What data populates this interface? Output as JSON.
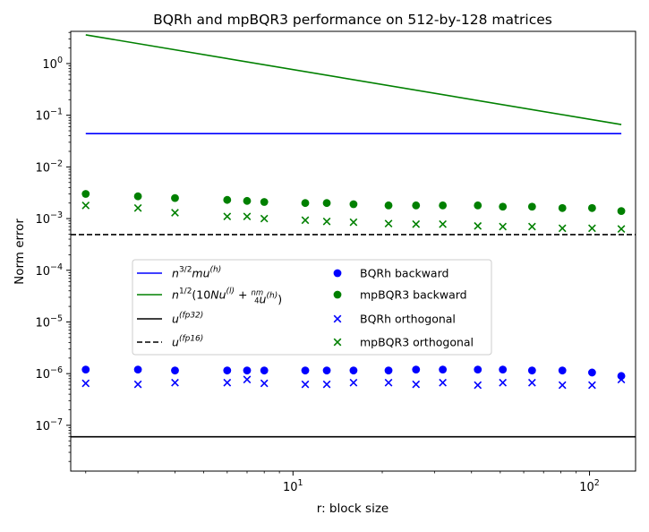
{
  "chart_data": {
    "type": "scatter",
    "title": "BQRh and mpBQR3 performance on 512-by-128 matrices",
    "xlabel": "r: block size",
    "ylabel": "Norm error",
    "xscale": "log",
    "yscale": "log",
    "xlim": [
      1.78,
      143
    ],
    "ylim": [
      1.3e-08,
      4.2
    ],
    "grid": false,
    "legend_position": "center-left",
    "x_tick_labels": [
      {
        "value": 10,
        "mantissa": "10",
        "exp": "1"
      },
      {
        "value": 100,
        "mantissa": "10",
        "exp": "2"
      }
    ],
    "y_tick_labels": [
      {
        "value": 1e-07,
        "mantissa": "10",
        "exp": "−7"
      },
      {
        "value": 1e-06,
        "mantissa": "10",
        "exp": "−6"
      },
      {
        "value": 1e-05,
        "mantissa": "10",
        "exp": "−5"
      },
      {
        "value": 0.0001,
        "mantissa": "10",
        "exp": "−4"
      },
      {
        "value": 0.001,
        "mantissa": "10",
        "exp": "−3"
      },
      {
        "value": 0.01,
        "mantissa": "10",
        "exp": "−2"
      },
      {
        "value": 0.1,
        "mantissa": "10",
        "exp": "−1"
      },
      {
        "value": 1,
        "mantissa": "10",
        "exp": "0"
      }
    ],
    "lines": [
      {
        "name": "n^{3/2} m u^{(h)}",
        "color": "#0000ff",
        "dash": "solid",
        "x": [
          2,
          128
        ],
        "y": [
          0.044,
          0.044
        ]
      },
      {
        "name": "n^{1/2}(10 N u^{(l)} + nm/4 u^{(h)})",
        "color": "#008000",
        "dash": "solid",
        "x": [
          2,
          128
        ],
        "y": [
          3.6,
          0.066
        ]
      },
      {
        "name": "u^{(fp32)}",
        "color": "#000000",
        "dash": "solid",
        "x": [
          1.78,
          143
        ],
        "y": [
          6e-08,
          6e-08
        ]
      },
      {
        "name": "u^{(fp16)}",
        "color": "#000000",
        "dash": "dashed",
        "x": [
          1.78,
          143
        ],
        "y": [
          0.00049,
          0.00049
        ]
      }
    ],
    "series": [
      {
        "name": "BQRh backward",
        "color": "#0000ff",
        "marker": "circle",
        "x": [
          2,
          3,
          4,
          6,
          7,
          8,
          11,
          13,
          16,
          21,
          26,
          32,
          42,
          51,
          64,
          81,
          102,
          128
        ],
        "y": [
          1.2e-06,
          1.2e-06,
          1.15e-06,
          1.15e-06,
          1.15e-06,
          1.15e-06,
          1.15e-06,
          1.15e-06,
          1.15e-06,
          1.15e-06,
          1.2e-06,
          1.2e-06,
          1.2e-06,
          1.2e-06,
          1.15e-06,
          1.15e-06,
          1.05e-06,
          9e-07
        ]
      },
      {
        "name": "mpBQR3 backward",
        "color": "#008000",
        "marker": "circle",
        "x": [
          2,
          3,
          4,
          6,
          7,
          8,
          11,
          13,
          16,
          21,
          26,
          32,
          42,
          51,
          64,
          81,
          102,
          128
        ],
        "y": [
          0.003,
          0.0027,
          0.0025,
          0.0023,
          0.0022,
          0.0021,
          0.002,
          0.002,
          0.0019,
          0.0018,
          0.0018,
          0.0018,
          0.0018,
          0.0017,
          0.0017,
          0.0016,
          0.0016,
          0.0014
        ]
      },
      {
        "name": "BQRh orthogonal",
        "color": "#0000ff",
        "marker": "x",
        "x": [
          2,
          3,
          4,
          6,
          7,
          8,
          11,
          13,
          16,
          21,
          26,
          32,
          42,
          51,
          64,
          81,
          102,
          128
        ],
        "y": [
          6.5e-07,
          6.2e-07,
          6.7e-07,
          6.7e-07,
          7.7e-07,
          6.5e-07,
          6.2e-07,
          6.2e-07,
          6.7e-07,
          6.7e-07,
          6.2e-07,
          6.7e-07,
          6e-07,
          6.7e-07,
          6.7e-07,
          6e-07,
          6e-07,
          7.7e-07
        ]
      },
      {
        "name": "mpBQR3 orthogonal",
        "color": "#008000",
        "marker": "x",
        "x": [
          2,
          3,
          4,
          6,
          7,
          8,
          11,
          13,
          16,
          21,
          26,
          32,
          42,
          51,
          64,
          81,
          102,
          128
        ],
        "y": [
          0.0018,
          0.0016,
          0.0013,
          0.0011,
          0.0011,
          0.001,
          0.00093,
          0.00088,
          0.00085,
          0.0008,
          0.00078,
          0.00078,
          0.00072,
          0.0007,
          0.0007,
          0.00065,
          0.00065,
          0.00063
        ]
      }
    ],
    "legend": {
      "col1": [
        {
          "kind": "line",
          "color": "#0000ff",
          "dash": "solid",
          "parts": [
            {
              "t": "n",
              "i": true
            },
            {
              "t": "3/2",
              "sup": true,
              "i": false
            },
            {
              "t": "mu",
              "i": true
            },
            {
              "t": "(h)",
              "sup": true,
              "i": true
            }
          ]
        },
        {
          "kind": "line",
          "color": "#008000",
          "dash": "solid",
          "parts": [
            {
              "t": "n",
              "i": true
            },
            {
              "t": "1/2",
              "sup": true,
              "i": false
            },
            {
              "t": "(10",
              "i": false
            },
            {
              "t": "Nu",
              "i": true
            },
            {
              "t": "(l)",
              "sup": true,
              "i": true
            },
            {
              "t": " + ",
              "i": false
            },
            {
              "frac": true,
              "num": "nm",
              "den": "4"
            },
            {
              "t": "u",
              "i": true
            },
            {
              "t": "(h)",
              "sup": true,
              "i": true
            },
            {
              "t": ")",
              "i": false
            }
          ]
        },
        {
          "kind": "line",
          "color": "#000000",
          "dash": "solid",
          "parts": [
            {
              "t": "u",
              "i": true
            },
            {
              "t": "(fp32)",
              "sup": true,
              "i": true
            }
          ]
        },
        {
          "kind": "line",
          "color": "#000000",
          "dash": "dashed",
          "parts": [
            {
              "t": "u",
              "i": true
            },
            {
              "t": "(fp16)",
              "sup": true,
              "i": true
            }
          ]
        }
      ],
      "col2": [
        {
          "kind": "circle",
          "color": "#0000ff",
          "label": "BQRh backward"
        },
        {
          "kind": "circle",
          "color": "#008000",
          "label": "mpBQR3 backward"
        },
        {
          "kind": "x",
          "color": "#0000ff",
          "label": "BQRh orthogonal"
        },
        {
          "kind": "x",
          "color": "#008000",
          "label": "mpBQR3 orthogonal"
        }
      ]
    }
  }
}
